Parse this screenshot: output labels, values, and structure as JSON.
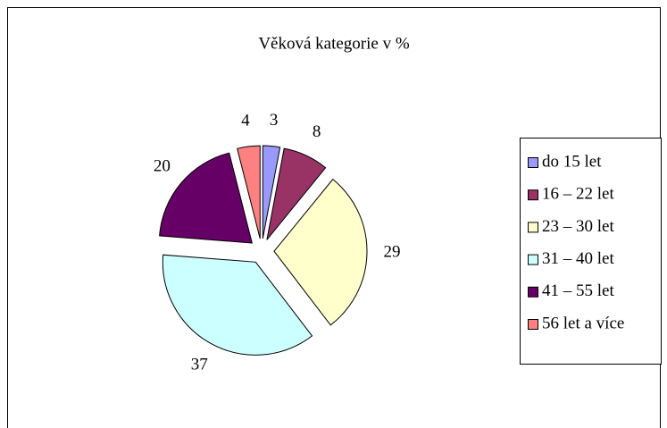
{
  "chart_data": {
    "type": "pie",
    "title": "Věková kategorie v %",
    "categories": [
      "do 15 let",
      "16 – 22 let",
      "23 – 30 let",
      "31 – 40 let",
      "41 – 55 let",
      "56 let a více"
    ],
    "values": [
      3,
      8,
      29,
      37,
      20,
      4
    ],
    "colors": [
      "#9999ff",
      "#993366",
      "#ffffcc",
      "#ccffff",
      "#660066",
      "#ff8080"
    ],
    "legend": "right",
    "exploded": true
  }
}
